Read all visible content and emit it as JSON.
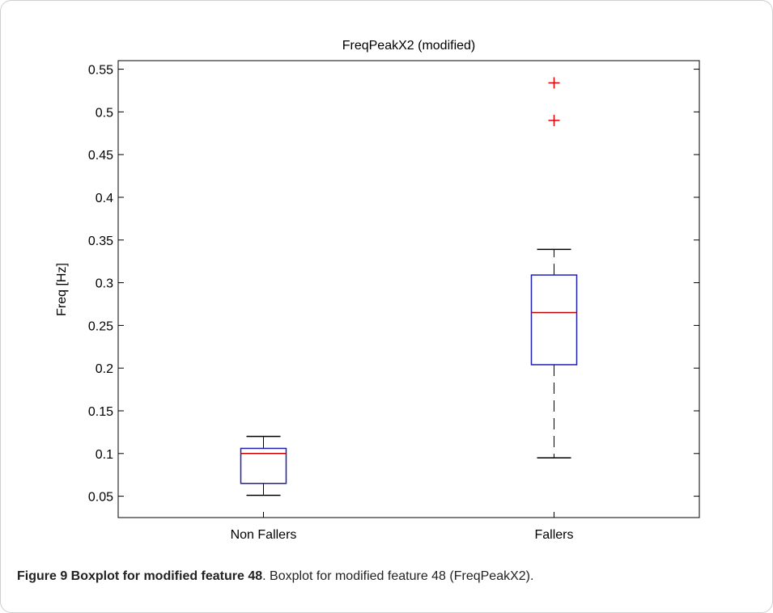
{
  "chart_data": {
    "type": "box",
    "title": "FreqPeakX2 (modified)",
    "xlabel": "",
    "ylabel": "Freq [Hz]",
    "ylim": [
      0.025,
      0.56
    ],
    "yticks": [
      "0.05",
      "0.1",
      "0.15",
      "0.2",
      "0.25",
      "0.3",
      "0.35",
      "0.4",
      "0.45",
      "0.5",
      "0.55"
    ],
    "categories": [
      "Non Fallers",
      "Fallers"
    ],
    "boxes": [
      {
        "whisker_low": 0.051,
        "q1": 0.065,
        "median": 0.1,
        "q3": 0.106,
        "whisker_high": 0.12,
        "outliers": []
      },
      {
        "whisker_low": 0.095,
        "q1": 0.204,
        "median": 0.265,
        "q3": 0.309,
        "whisker_high": 0.339,
        "outliers": [
          0.49,
          0.534
        ]
      }
    ],
    "grid": false,
    "colors": {
      "box": "#1f1fb0",
      "median": "#c00000",
      "whisker": "#000000",
      "outlier": "#e00000"
    }
  },
  "caption": {
    "label": "Figure 9 Boxplot for modified feature 48",
    "text": ". Boxplot for modified feature 48 (FreqPeakX2)."
  }
}
